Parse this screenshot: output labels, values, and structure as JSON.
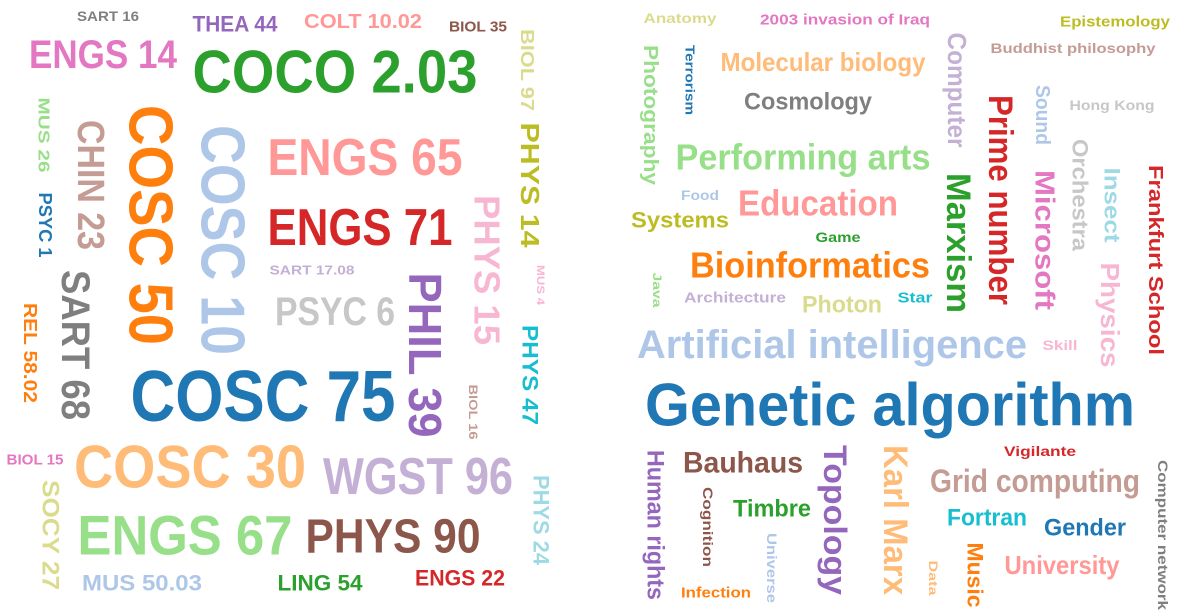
{
  "left_cloud": {
    "words": [
      {
        "text": "SART 16",
        "color": "#7f7f7f"
      },
      {
        "text": "THEA 44",
        "color": "#9467bd"
      },
      {
        "text": "COLT 10.02",
        "color": "#ff9896"
      },
      {
        "text": "BIOL 35",
        "color": "#8c564b"
      },
      {
        "text": "ENGS 14",
        "color": "#e377c2"
      },
      {
        "text": "COCO 2.03",
        "color": "#2ca02c"
      },
      {
        "text": "BIOL 97",
        "color": "#dbdb8d"
      },
      {
        "text": "MUS 26",
        "color": "#98df8a"
      },
      {
        "text": "CHIN 23",
        "color": "#c49c94"
      },
      {
        "text": "COSC 50",
        "color": "#ff7f0e"
      },
      {
        "text": "COSC 10",
        "color": "#aec7e8"
      },
      {
        "text": "ENGS 65",
        "color": "#ff9896"
      },
      {
        "text": "ENGS 71",
        "color": "#d62728"
      },
      {
        "text": "PHYS 14",
        "color": "#bcbd22"
      },
      {
        "text": "PSYC 1",
        "color": "#1f77b4"
      },
      {
        "text": "PHYS 15",
        "color": "#f7b6d2"
      },
      {
        "text": "SART 17.08",
        "color": "#c5b0d5"
      },
      {
        "text": "MUS 4",
        "color": "#f7b6d2"
      },
      {
        "text": "PSYC 6",
        "color": "#c7c7c7"
      },
      {
        "text": "SART 68",
        "color": "#7f7f7f"
      },
      {
        "text": "PHIL 39",
        "color": "#9467bd"
      },
      {
        "text": "REL 58.02",
        "color": "#ff7f0e"
      },
      {
        "text": "PHYS 47",
        "color": "#17becf"
      },
      {
        "text": "COSC 75",
        "color": "#1f77b4"
      },
      {
        "text": "BIOL 16",
        "color": "#c49c94"
      },
      {
        "text": "BIOL 15",
        "color": "#e377c2"
      },
      {
        "text": "COSC 30",
        "color": "#ffbb78"
      },
      {
        "text": "WGST 96",
        "color": "#c5b0d5"
      },
      {
        "text": "SOCY 27",
        "color": "#dbdb8d"
      },
      {
        "text": "PHYS 24",
        "color": "#9edae5"
      },
      {
        "text": "ENGS 67",
        "color": "#98df8a"
      },
      {
        "text": "PHYS 90",
        "color": "#8c564b"
      },
      {
        "text": "MUS 50.03",
        "color": "#aec7e8"
      },
      {
        "text": "LING 54",
        "color": "#2ca02c"
      },
      {
        "text": "ENGS 22",
        "color": "#d62728"
      }
    ]
  },
  "right_cloud": {
    "words": [
      {
        "text": "Anatomy",
        "color": "#dbdb8d"
      },
      {
        "text": "2003 invasion of Iraq",
        "color": "#e377c2"
      },
      {
        "text": "Epistemology",
        "color": "#bcbd22"
      },
      {
        "text": "Buddhist philosophy",
        "color": "#c49c94"
      },
      {
        "text": "Computer",
        "color": "#c5b0d5"
      },
      {
        "text": "Photography",
        "color": "#98df8a"
      },
      {
        "text": "Terrorism",
        "color": "#1f77b4"
      },
      {
        "text": "Molecular biology",
        "color": "#ffbb78"
      },
      {
        "text": "Cosmology",
        "color": "#7f7f7f"
      },
      {
        "text": "Prime number",
        "color": "#d62728"
      },
      {
        "text": "Sound",
        "color": "#aec7e8"
      },
      {
        "text": "Hong Kong",
        "color": "#c7c7c7"
      },
      {
        "text": "Orchestra",
        "color": "#c7c7c7"
      },
      {
        "text": "Performing arts",
        "color": "#98df8a"
      },
      {
        "text": "Marxism",
        "color": "#2ca02c"
      },
      {
        "text": "Microsoft",
        "color": "#e377c2"
      },
      {
        "text": "Insect",
        "color": "#9edae5"
      },
      {
        "text": "Frankfurt School",
        "color": "#d62728"
      },
      {
        "text": "Food",
        "color": "#aec7e8"
      },
      {
        "text": "Systems",
        "color": "#bcbd22"
      },
      {
        "text": "Education",
        "color": "#ff9896"
      },
      {
        "text": "Game",
        "color": "#2ca02c"
      },
      {
        "text": "Bioinformatics",
        "color": "#ff7f0e"
      },
      {
        "text": "Java",
        "color": "#98df8a"
      },
      {
        "text": "Architecture",
        "color": "#c5b0d5"
      },
      {
        "text": "Photon",
        "color": "#dbdb8d"
      },
      {
        "text": "Star",
        "color": "#17becf"
      },
      {
        "text": "Physics",
        "color": "#f7b6d2"
      },
      {
        "text": "Skill",
        "color": "#f7b6d2"
      },
      {
        "text": "Artificial intelligence",
        "color": "#aec7e8"
      },
      {
        "text": "Genetic algorithm",
        "color": "#1f77b4"
      },
      {
        "text": "Vigilante",
        "color": "#d62728"
      },
      {
        "text": "Human rights",
        "color": "#9467bd"
      },
      {
        "text": "Bauhaus",
        "color": "#8c564b"
      },
      {
        "text": "Topology",
        "color": "#9467bd"
      },
      {
        "text": "Karl Marx",
        "color": "#ffbb78"
      },
      {
        "text": "Grid computing",
        "color": "#c49c94"
      },
      {
        "text": "Computer network",
        "color": "#7f7f7f"
      },
      {
        "text": "Cognition",
        "color": "#8c564b"
      },
      {
        "text": "Timbre",
        "color": "#2ca02c"
      },
      {
        "text": "Fortran",
        "color": "#17becf"
      },
      {
        "text": "Gender",
        "color": "#1f77b4"
      },
      {
        "text": "Universe",
        "color": "#aec7e8"
      },
      {
        "text": "Infection",
        "color": "#ff7f0e"
      },
      {
        "text": "Data",
        "color": "#ffbb78"
      },
      {
        "text": "Music",
        "color": "#ff7f0e"
      },
      {
        "text": "University",
        "color": "#ff9896"
      }
    ]
  }
}
